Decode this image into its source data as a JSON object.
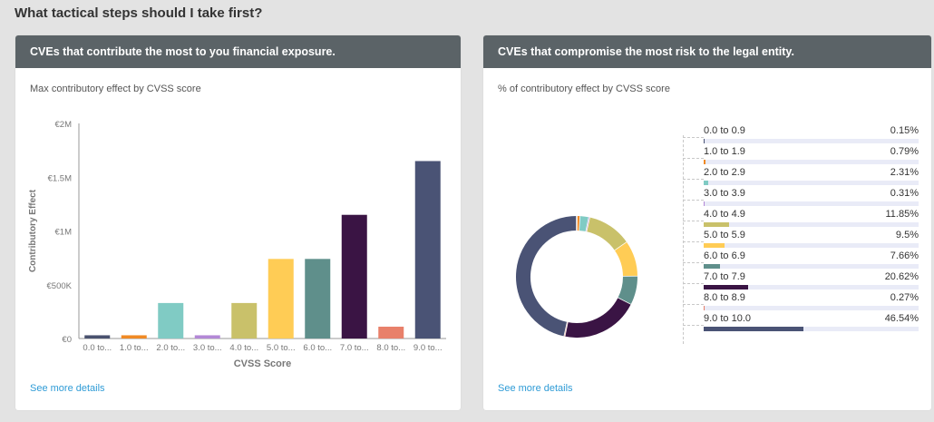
{
  "page": {
    "title": "What tactical steps should I take first?"
  },
  "left_card": {
    "header": "CVEs that contribute the most to you financial exposure.",
    "subtitle": "Max contributory effect by CVSS score",
    "link": "See more details"
  },
  "right_card": {
    "header": "CVEs that compromise the most risk to the legal entity.",
    "subtitle": "% of contributory effect by CVSS score",
    "link": "See more details"
  },
  "chart_data": [
    {
      "type": "bar",
      "xlabel": "CVSS Score",
      "ylabel": "Contributory Effect",
      "ylim": [
        0,
        2000000
      ],
      "yticks": [
        0,
        500000,
        1000000,
        1500000,
        2000000
      ],
      "ytick_labels": [
        "€0",
        "€500K",
        "€1M",
        "€1.5M",
        "€2M"
      ],
      "categories": [
        "0.0 to...",
        "1.0 to...",
        "2.0 to...",
        "3.0 to...",
        "4.0 to...",
        "5.0 to...",
        "6.0 to...",
        "7.0 to...",
        "8.0 to...",
        "9.0 to..."
      ],
      "values": [
        30000,
        30000,
        330000,
        30000,
        330000,
        740000,
        740000,
        1150000,
        110000,
        1650000
      ],
      "colors": [
        "#49516e",
        "#f08a24",
        "#80cbc4",
        "#b388d6",
        "#c9c16a",
        "#ffcc55",
        "#5f8f8b",
        "#3a1444",
        "#e8806a",
        "#4a5375"
      ],
      "grid": false,
      "legend": "none"
    },
    {
      "type": "pie",
      "style": "donut",
      "categories": [
        "0.0 to 0.9",
        "1.0 to 1.9",
        "2.0 to 2.9",
        "3.0 to 3.9",
        "4.0 to 4.9",
        "5.0 to 5.9",
        "6.0 to 6.9",
        "7.0 to 7.9",
        "8.0 to 8.9",
        "9.0 to 10.0"
      ],
      "values": [
        0.15,
        0.79,
        2.31,
        0.31,
        11.85,
        9.5,
        7.66,
        20.62,
        0.27,
        46.54
      ],
      "value_labels": [
        "0.15%",
        "0.79%",
        "2.31%",
        "0.31%",
        "11.85%",
        "9.5%",
        "7.66%",
        "20.62%",
        "0.27%",
        "46.54%"
      ],
      "colors": [
        "#4a5375",
        "#f08a24",
        "#80cbc4",
        "#b388d6",
        "#c9c16a",
        "#ffcc55",
        "#5f8f8b",
        "#3a1444",
        "#e8806a",
        "#4a5375"
      ],
      "legend": "right"
    }
  ]
}
